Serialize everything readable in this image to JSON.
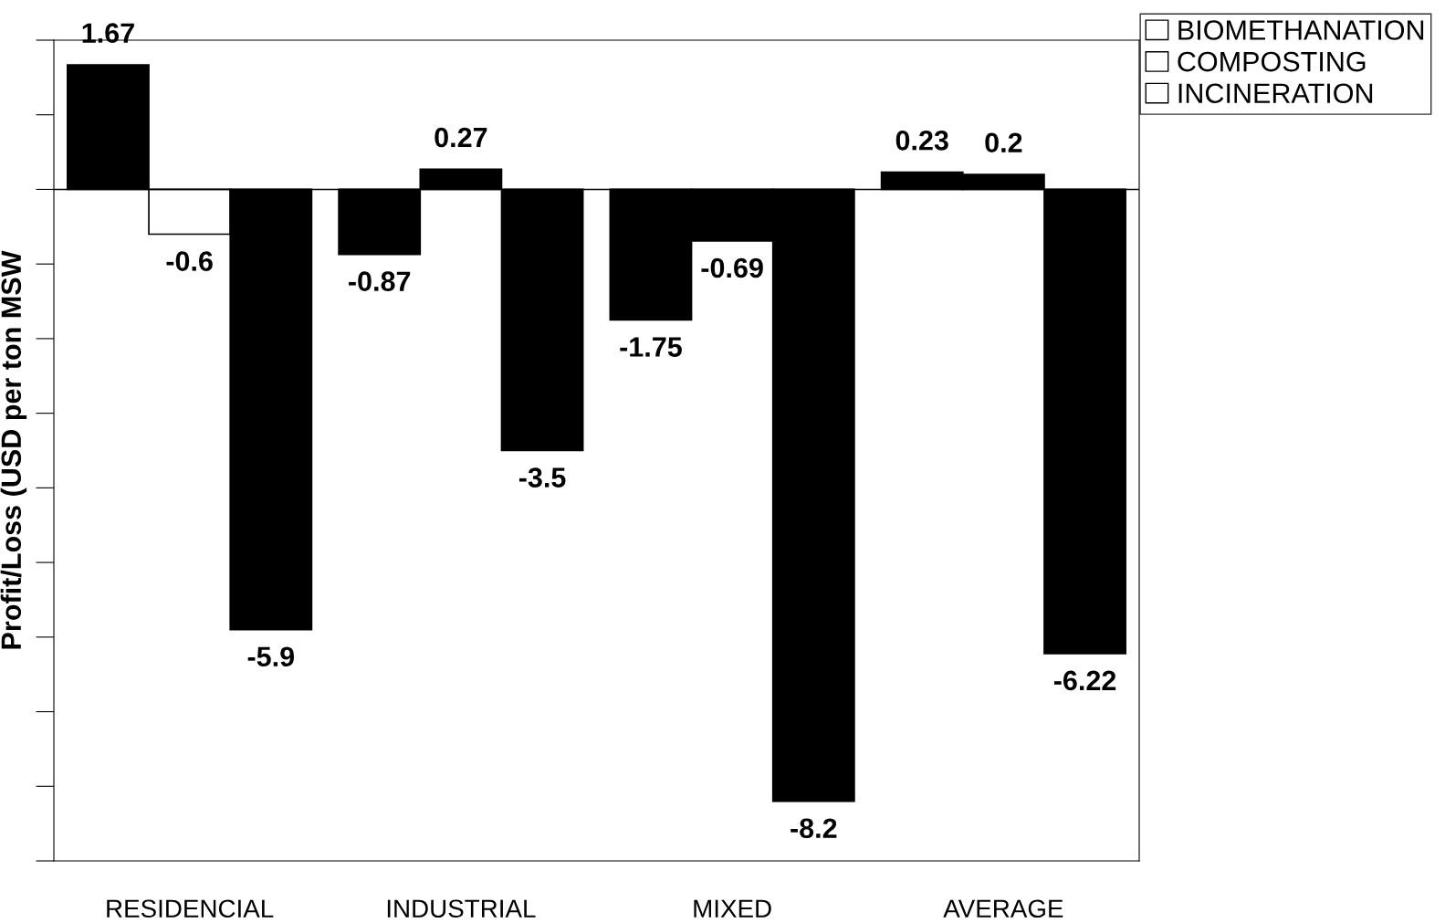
{
  "chart_data": {
    "type": "bar",
    "ylabel": "Profit/Loss (USD per ton MSW",
    "categories": [
      "RESIDENCIAL",
      "INDUSTRIAL",
      "MIXED",
      "AVERAGE"
    ],
    "series": [
      {
        "name": "BIOMETHANATION",
        "color": "#000000",
        "values": [
          1.67,
          -0.87,
          -1.75,
          0.23
        ]
      },
      {
        "name": "COMPOSTING",
        "colors": [
          "#ffffff",
          "#000000",
          "#000000",
          "#000000"
        ],
        "values": [
          -0.6,
          0.27,
          -0.69,
          0.2
        ]
      },
      {
        "name": "INCINERATION",
        "color": "#000000",
        "values": [
          -5.9,
          -3.5,
          -8.2,
          -6.22
        ]
      }
    ],
    "ylim": [
      -9,
      2
    ],
    "ref_lines": [
      {
        "axis": "y",
        "value": 0,
        "color": "#000000"
      }
    ],
    "data_labels": true,
    "grid": false,
    "legend": "top right"
  }
}
